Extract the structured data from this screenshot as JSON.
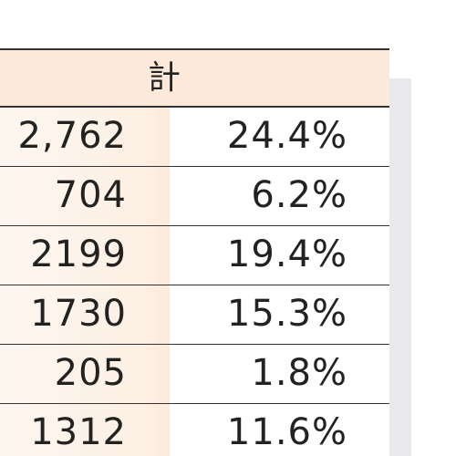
{
  "table": {
    "header": {
      "label": "計"
    },
    "rows": [
      {
        "count": "2,762",
        "percent": "24.4%"
      },
      {
        "count": "704",
        "percent": "6.2%"
      },
      {
        "count": "2199",
        "percent": "19.4%"
      },
      {
        "count": "1730",
        "percent": "15.3%"
      },
      {
        "count": "205",
        "percent": "1.8%"
      },
      {
        "count": "1312",
        "percent": "11.6%"
      }
    ]
  }
}
